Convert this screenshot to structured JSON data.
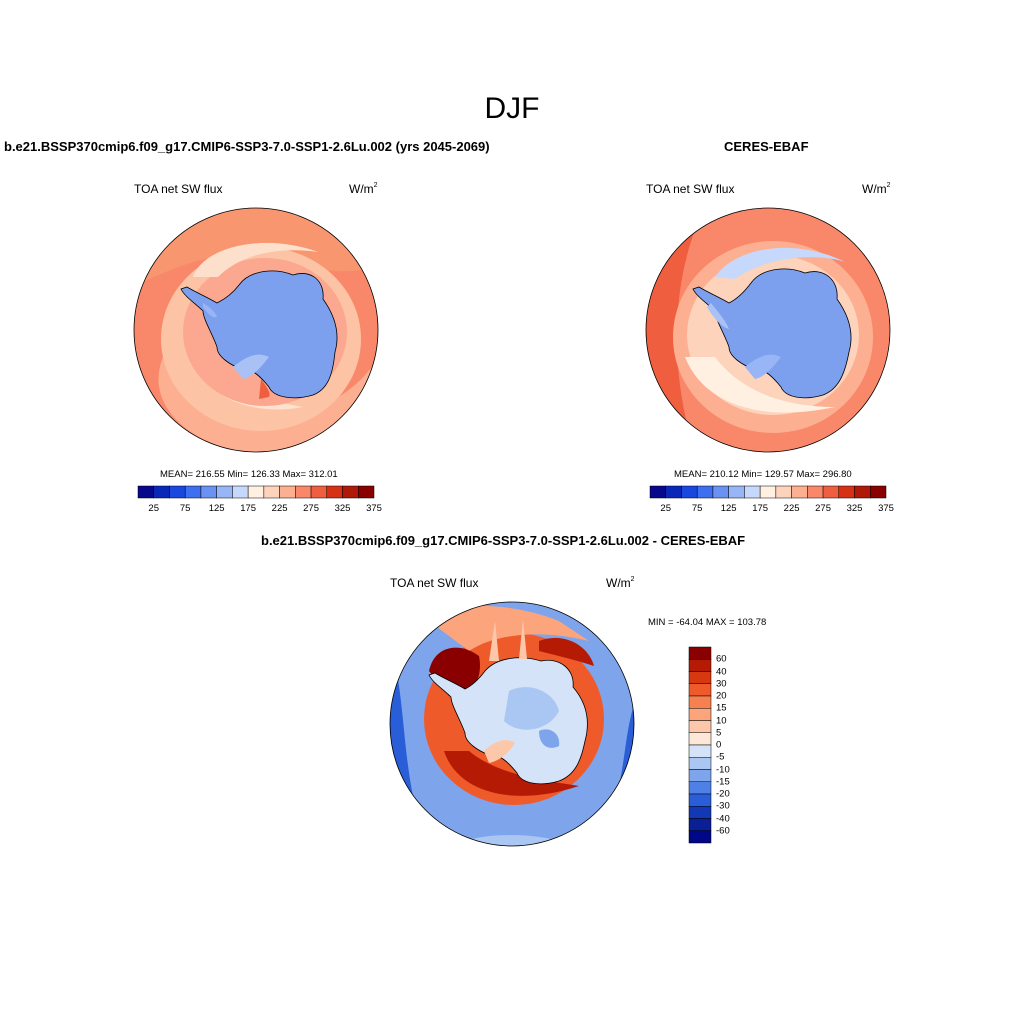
{
  "figure": {
    "season": "DJF"
  },
  "panels": {
    "model": {
      "title": "b.e21.BSSP370cmip6.f09_g17.CMIP6-SSP3-7.0-SSP1-2.6Lu.002 (yrs 2045-2069)",
      "variable": "TOA net SW flux",
      "unit_base": "W/m",
      "unit_exp": "2",
      "stats": "MEAN= 216.55  Min= 126.33  Max= 312.01"
    },
    "obs": {
      "title": "CERES-EBAF",
      "variable": "TOA net SW flux",
      "unit_base": "W/m",
      "unit_exp": "2",
      "stats": "MEAN= 210.12  Min= 129.57  Max= 296.80"
    },
    "diff": {
      "title": "b.e21.BSSP370cmip6.f09_g17.CMIP6-SSP3-7.0-SSP1-2.6Lu.002 - CERES-EBAF",
      "variable": "TOA net SW flux",
      "unit_base": "W/m",
      "unit_exp": "2",
      "stats": "MIN = -64.04 MAX = 103.78"
    }
  },
  "chart_data": [
    {
      "type": "heatmap",
      "title": "b.e21.BSSP370cmip6.f09_g17.CMIP6-SSP3-7.0-SSP1-2.6Lu.002 (yrs 2045-2069)",
      "projection": "south-polar-stereographic",
      "variable": "TOA net SW flux",
      "units": "W/m2",
      "mean": 216.55,
      "min": 126.33,
      "max": 312.01,
      "colorbar_levels": [
        25,
        50,
        75,
        100,
        125,
        150,
        175,
        200,
        225,
        250,
        275,
        300,
        325,
        350,
        375
      ],
      "colorbar_tick_labels": [
        "25",
        "75",
        "125",
        "175",
        "225",
        "275",
        "325",
        "375"
      ],
      "colors": [
        "#08088a",
        "#0a28b8",
        "#1848e0",
        "#3d6ff0",
        "#6a92f2",
        "#98b5f6",
        "#c6d8fb",
        "#fff0e2",
        "#fdd3bb",
        "#fcb091",
        "#f9886a",
        "#f05e40",
        "#d83015",
        "#b01808",
        "#880000"
      ]
    },
    {
      "type": "heatmap",
      "title": "CERES-EBAF",
      "projection": "south-polar-stereographic",
      "variable": "TOA net SW flux",
      "units": "W/m2",
      "mean": 210.12,
      "min": 129.57,
      "max": 296.8,
      "colorbar_levels": [
        25,
        50,
        75,
        100,
        125,
        150,
        175,
        200,
        225,
        250,
        275,
        300,
        325,
        350,
        375
      ],
      "colorbar_tick_labels": [
        "25",
        "75",
        "125",
        "175",
        "225",
        "275",
        "325",
        "375"
      ],
      "colors": [
        "#08088a",
        "#0a28b8",
        "#1848e0",
        "#3d6ff0",
        "#6a92f2",
        "#98b5f6",
        "#c6d8fb",
        "#fff0e2",
        "#fdd3bb",
        "#fcb091",
        "#f9886a",
        "#f05e40",
        "#d83015",
        "#b01808",
        "#880000"
      ]
    },
    {
      "type": "heatmap",
      "title": "b.e21.BSSP370cmip6.f09_g17.CMIP6-SSP3-7.0-SSP1-2.6Lu.002 - CERES-EBAF",
      "projection": "south-polar-stereographic",
      "variable": "TOA net SW flux",
      "units": "W/m2",
      "min": -64.04,
      "max": 103.78,
      "colorbar_levels": [
        "60",
        "40",
        "30",
        "20",
        "15",
        "10",
        "5",
        "0",
        "-5",
        "-10",
        "-15",
        "-20",
        "-30",
        "-40",
        "-60"
      ],
      "colors": [
        "#8a0000",
        "#b51a05",
        "#d8380f",
        "#ee5a2a",
        "#f78050",
        "#fca47c",
        "#fdc8aa",
        "#fde8d8",
        "#d5e3f8",
        "#aac6f2",
        "#7ea5ec",
        "#4f80e6",
        "#2a5ed8",
        "#1238b6",
        "#0a1e96",
        "#000888"
      ]
    }
  ]
}
